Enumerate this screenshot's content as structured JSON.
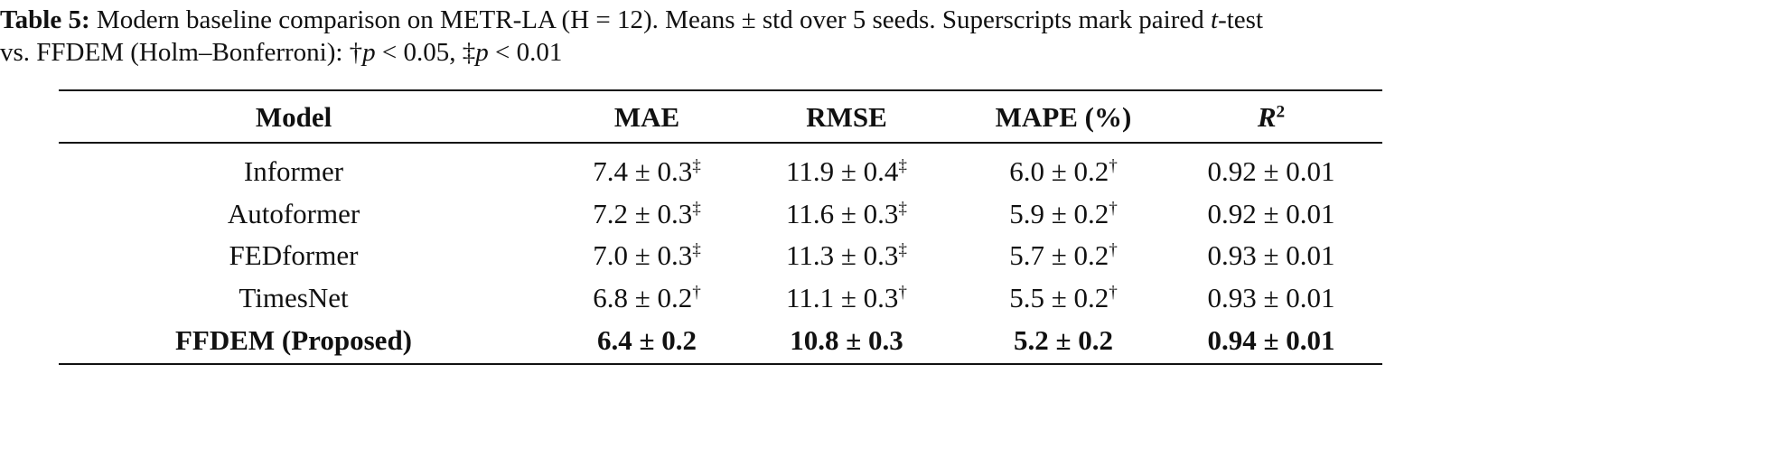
{
  "caption": {
    "label": "Table 5:",
    "line1": [
      "Modern baseline comparison on METR-LA (H = 12). Means ± std over 5 seeds. Superscripts mark paired ",
      {
        "italic": "t"
      },
      "-test"
    ],
    "line2": [
      "vs. FFDEM (Holm–Bonferroni): †",
      {
        "italic": "p"
      },
      " < 0.05, ‡",
      {
        "italic": "p"
      },
      " < 0.01"
    ]
  },
  "table": {
    "header": [
      {
        "text": "Model"
      },
      {
        "text": "MAE"
      },
      {
        "text": "RMSE"
      },
      {
        "text": "MAPE (%)"
      },
      {
        "italic": "R",
        "sup": "2"
      }
    ],
    "rows": [
      {
        "cells": [
          {
            "text": "Informer"
          },
          {
            "text": "7.4 ± 0.3",
            "sup": "‡"
          },
          {
            "text": "11.9 ± 0.4",
            "sup": "‡"
          },
          {
            "text": "6.0 ± 0.2",
            "sup": "†"
          },
          {
            "text": "0.92 ± 0.01"
          }
        ]
      },
      {
        "cells": [
          {
            "text": "Autoformer"
          },
          {
            "text": "7.2 ± 0.3",
            "sup": "‡"
          },
          {
            "text": "11.6 ± 0.3",
            "sup": "‡"
          },
          {
            "text": "5.9 ± 0.2",
            "sup": "†"
          },
          {
            "text": "0.92 ± 0.01"
          }
        ]
      },
      {
        "cells": [
          {
            "text": "FEDformer"
          },
          {
            "text": "7.0 ± 0.3",
            "sup": "‡"
          },
          {
            "text": "11.3 ± 0.3",
            "sup": "‡"
          },
          {
            "text": "5.7 ± 0.2",
            "sup": "†"
          },
          {
            "text": "0.93 ± 0.01"
          }
        ]
      },
      {
        "cells": [
          {
            "text": "TimesNet"
          },
          {
            "text": "6.8 ± 0.2",
            "sup": "†"
          },
          {
            "text": "11.1 ± 0.3",
            "sup": "†"
          },
          {
            "text": "5.5 ± 0.2",
            "sup": "†"
          },
          {
            "text": "0.93 ± 0.01"
          }
        ]
      },
      {
        "cells": [
          {
            "text": "FFDEM (Proposed)"
          },
          {
            "text": "6.4 ± 0.2"
          },
          {
            "text": "10.8 ± 0.3"
          },
          {
            "text": "5.2 ± 0.2"
          },
          {
            "text": "0.94 ± 0.01"
          }
        ],
        "bold": true
      }
    ]
  }
}
